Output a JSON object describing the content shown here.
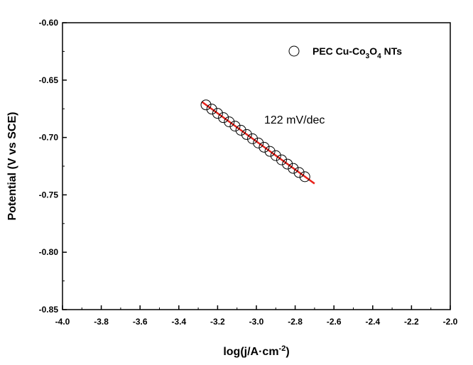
{
  "chart_data": {
    "type": "scatter",
    "title": "",
    "xlabel": {
      "main": "log(j/A·cm",
      "sup": "-2",
      "end": ")"
    },
    "ylabel": "Potential (V vs SCE)",
    "xlim": [
      -4.0,
      -2.0
    ],
    "ylim": [
      -0.85,
      -0.6
    ],
    "x_ticks": [
      "-4.0",
      "-3.8",
      "-3.6",
      "-3.4",
      "-3.2",
      "-3.0",
      "-2.8",
      "-2.6",
      "-2.4",
      "-2.2",
      "-2.0"
    ],
    "y_ticks": [
      "-0.60",
      "-0.65",
      "-0.70",
      "-0.75",
      "-0.80",
      "-0.85"
    ],
    "grid": false,
    "legend_position": "top-right",
    "series": [
      {
        "name": "PEC Cu-Co3O4 NTs",
        "legend_parts": [
          "PEC Cu-Co",
          "3",
          "O",
          "4",
          " NTs"
        ],
        "marker": "open-circle",
        "x": [
          -3.26,
          -3.23,
          -3.2,
          -3.17,
          -3.14,
          -3.11,
          -3.08,
          -3.05,
          -3.02,
          -2.99,
          -2.96,
          -2.93,
          -2.9,
          -2.87,
          -2.84,
          -2.81,
          -2.78,
          -2.75
        ],
        "y": [
          -0.6716,
          -0.6753,
          -0.679,
          -0.6827,
          -0.6864,
          -0.6901,
          -0.6937,
          -0.6974,
          -0.7011,
          -0.7048,
          -0.7085,
          -0.7121,
          -0.7158,
          -0.7195,
          -0.7232,
          -0.7269,
          -0.7305,
          -0.7342
        ]
      }
    ],
    "fit_line": {
      "x": [
        -3.28,
        -2.7
      ],
      "y": [
        -0.6691,
        -0.7402
      ],
      "color": "#e8221b"
    },
    "annotation": "122 mV/dec"
  }
}
